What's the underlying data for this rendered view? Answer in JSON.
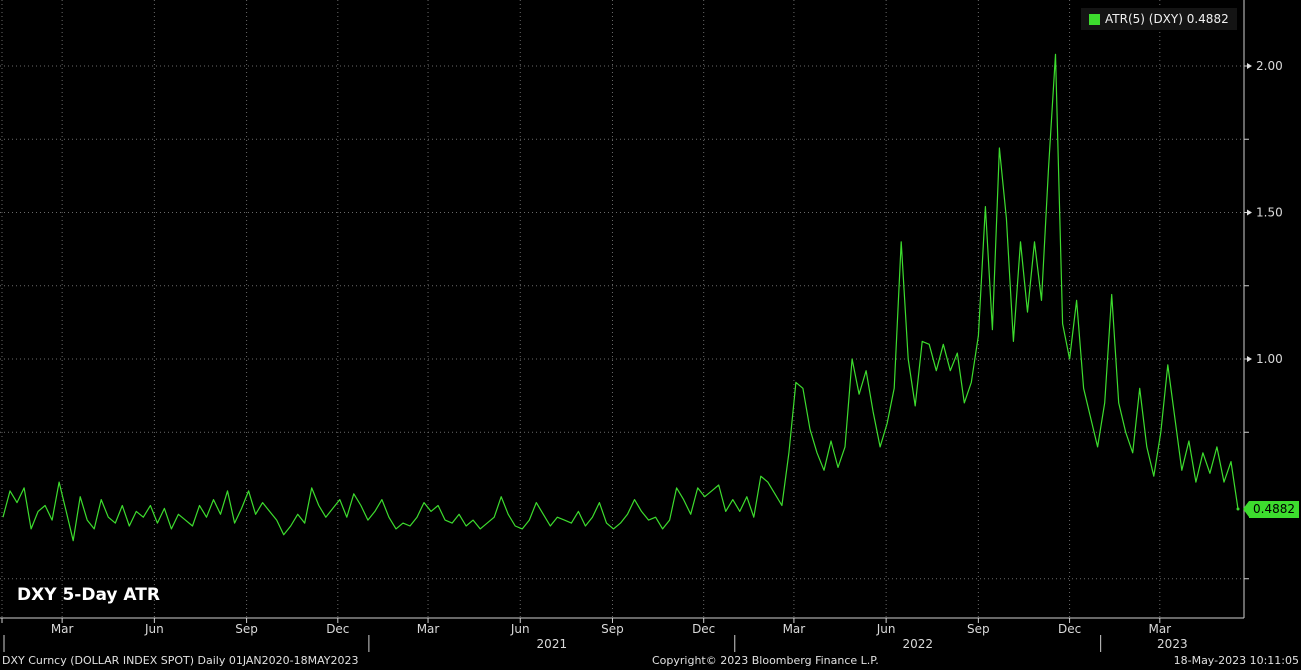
{
  "chart_data": {
    "type": "line",
    "title": "DXY 5-Day ATR",
    "series": [
      {
        "name": "ATR(5) (DXY)",
        "last_value": "0.4882",
        "color": "#3ddc2e",
        "points": [
          [
            "2020-01-02",
            0.46
          ],
          [
            "2020-01-09",
            0.55
          ],
          [
            "2020-01-16",
            0.51
          ],
          [
            "2020-01-23",
            0.56
          ],
          [
            "2020-01-30",
            0.42
          ],
          [
            "2020-02-06",
            0.48
          ],
          [
            "2020-02-13",
            0.5
          ],
          [
            "2020-02-20",
            0.45
          ],
          [
            "2020-02-27",
            0.58
          ],
          [
            "2020-03-05",
            0.48
          ],
          [
            "2020-03-12",
            0.38
          ],
          [
            "2020-03-19",
            0.53
          ],
          [
            "2020-03-26",
            0.45
          ],
          [
            "2020-04-02",
            0.42
          ],
          [
            "2020-04-09",
            0.52
          ],
          [
            "2020-04-16",
            0.46
          ],
          [
            "2020-04-23",
            0.44
          ],
          [
            "2020-04-30",
            0.5
          ],
          [
            "2020-05-07",
            0.43
          ],
          [
            "2020-05-14",
            0.48
          ],
          [
            "2020-05-21",
            0.46
          ],
          [
            "2020-05-28",
            0.5
          ],
          [
            "2020-06-04",
            0.44
          ],
          [
            "2020-06-11",
            0.49
          ],
          [
            "2020-06-18",
            0.42
          ],
          [
            "2020-06-25",
            0.47
          ],
          [
            "2020-07-02",
            0.45
          ],
          [
            "2020-07-09",
            0.43
          ],
          [
            "2020-07-16",
            0.5
          ],
          [
            "2020-07-23",
            0.46
          ],
          [
            "2020-07-30",
            0.52
          ],
          [
            "2020-08-06",
            0.47
          ],
          [
            "2020-08-13",
            0.55
          ],
          [
            "2020-08-20",
            0.44
          ],
          [
            "2020-08-27",
            0.49
          ],
          [
            "2020-09-03",
            0.55
          ],
          [
            "2020-09-10",
            0.47
          ],
          [
            "2020-09-17",
            0.51
          ],
          [
            "2020-09-24",
            0.48
          ],
          [
            "2020-10-01",
            0.45
          ],
          [
            "2020-10-08",
            0.4
          ],
          [
            "2020-10-15",
            0.43
          ],
          [
            "2020-10-22",
            0.47
          ],
          [
            "2020-10-29",
            0.44
          ],
          [
            "2020-11-05",
            0.56
          ],
          [
            "2020-11-12",
            0.5
          ],
          [
            "2020-11-19",
            0.46
          ],
          [
            "2020-11-26",
            0.49
          ],
          [
            "2020-12-03",
            0.52
          ],
          [
            "2020-12-10",
            0.46
          ],
          [
            "2020-12-17",
            0.54
          ],
          [
            "2020-12-24",
            0.5
          ],
          [
            "2020-12-31",
            0.45
          ],
          [
            "2021-01-07",
            0.48
          ],
          [
            "2021-01-14",
            0.52
          ],
          [
            "2021-01-21",
            0.46
          ],
          [
            "2021-01-28",
            0.42
          ],
          [
            "2021-02-04",
            0.44
          ],
          [
            "2021-02-11",
            0.43
          ],
          [
            "2021-02-18",
            0.46
          ],
          [
            "2021-02-25",
            0.51
          ],
          [
            "2021-03-04",
            0.48
          ],
          [
            "2021-03-11",
            0.5
          ],
          [
            "2021-03-18",
            0.45
          ],
          [
            "2021-03-25",
            0.44
          ],
          [
            "2021-04-01",
            0.47
          ],
          [
            "2021-04-08",
            0.43
          ],
          [
            "2021-04-15",
            0.45
          ],
          [
            "2021-04-22",
            0.42
          ],
          [
            "2021-04-29",
            0.44
          ],
          [
            "2021-05-06",
            0.46
          ],
          [
            "2021-05-13",
            0.53
          ],
          [
            "2021-05-20",
            0.47
          ],
          [
            "2021-05-27",
            0.43
          ],
          [
            "2021-06-03",
            0.42
          ],
          [
            "2021-06-10",
            0.45
          ],
          [
            "2021-06-17",
            0.51
          ],
          [
            "2021-06-24",
            0.47
          ],
          [
            "2021-07-01",
            0.43
          ],
          [
            "2021-07-08",
            0.46
          ],
          [
            "2021-07-15",
            0.45
          ],
          [
            "2021-07-22",
            0.44
          ],
          [
            "2021-07-29",
            0.48
          ],
          [
            "2021-08-05",
            0.43
          ],
          [
            "2021-08-12",
            0.46
          ],
          [
            "2021-08-19",
            0.51
          ],
          [
            "2021-08-26",
            0.44
          ],
          [
            "2021-09-02",
            0.42
          ],
          [
            "2021-09-09",
            0.44
          ],
          [
            "2021-09-16",
            0.47
          ],
          [
            "2021-09-23",
            0.52
          ],
          [
            "2021-09-30",
            0.48
          ],
          [
            "2021-10-07",
            0.45
          ],
          [
            "2021-10-14",
            0.46
          ],
          [
            "2021-10-21",
            0.42
          ],
          [
            "2021-10-28",
            0.45
          ],
          [
            "2021-11-04",
            0.56
          ],
          [
            "2021-11-11",
            0.52
          ],
          [
            "2021-11-18",
            0.47
          ],
          [
            "2021-11-25",
            0.56
          ],
          [
            "2021-12-02",
            0.53
          ],
          [
            "2021-12-09",
            0.55
          ],
          [
            "2021-12-16",
            0.57
          ],
          [
            "2021-12-23",
            0.48
          ],
          [
            "2021-12-30",
            0.52
          ],
          [
            "2022-01-06",
            0.48
          ],
          [
            "2022-01-13",
            0.53
          ],
          [
            "2022-01-20",
            0.46
          ],
          [
            "2022-01-27",
            0.6
          ],
          [
            "2022-02-03",
            0.58
          ],
          [
            "2022-02-10",
            0.54
          ],
          [
            "2022-02-17",
            0.5
          ],
          [
            "2022-02-24",
            0.68
          ],
          [
            "2022-03-03",
            0.92
          ],
          [
            "2022-03-10",
            0.9
          ],
          [
            "2022-03-17",
            0.76
          ],
          [
            "2022-03-24",
            0.68
          ],
          [
            "2022-03-31",
            0.62
          ],
          [
            "2022-04-07",
            0.72
          ],
          [
            "2022-04-14",
            0.63
          ],
          [
            "2022-04-21",
            0.7
          ],
          [
            "2022-04-28",
            1.0
          ],
          [
            "2022-05-05",
            0.88
          ],
          [
            "2022-05-12",
            0.96
          ],
          [
            "2022-05-19",
            0.82
          ],
          [
            "2022-05-26",
            0.7
          ],
          [
            "2022-06-02",
            0.78
          ],
          [
            "2022-06-09",
            0.9
          ],
          [
            "2022-06-16",
            1.4
          ],
          [
            "2022-06-23",
            1.0
          ],
          [
            "2022-06-30",
            0.84
          ],
          [
            "2022-07-07",
            1.06
          ],
          [
            "2022-07-14",
            1.05
          ],
          [
            "2022-07-21",
            0.96
          ],
          [
            "2022-07-28",
            1.05
          ],
          [
            "2022-08-04",
            0.96
          ],
          [
            "2022-08-11",
            1.02
          ],
          [
            "2022-08-18",
            0.85
          ],
          [
            "2022-08-25",
            0.92
          ],
          [
            "2022-09-01",
            1.08
          ],
          [
            "2022-09-08",
            1.52
          ],
          [
            "2022-09-15",
            1.1
          ],
          [
            "2022-09-22",
            1.72
          ],
          [
            "2022-09-29",
            1.48
          ],
          [
            "2022-10-06",
            1.06
          ],
          [
            "2022-10-13",
            1.4
          ],
          [
            "2022-10-20",
            1.16
          ],
          [
            "2022-10-27",
            1.4
          ],
          [
            "2022-11-03",
            1.2
          ],
          [
            "2022-11-10",
            1.65
          ],
          [
            "2022-11-17",
            2.04
          ],
          [
            "2022-11-24",
            1.12
          ],
          [
            "2022-12-01",
            1.0
          ],
          [
            "2022-12-08",
            1.2
          ],
          [
            "2022-12-15",
            0.9
          ],
          [
            "2022-12-22",
            0.8
          ],
          [
            "2022-12-29",
            0.7
          ],
          [
            "2023-01-05",
            0.85
          ],
          [
            "2023-01-12",
            1.22
          ],
          [
            "2023-01-19",
            0.85
          ],
          [
            "2023-01-26",
            0.75
          ],
          [
            "2023-02-02",
            0.68
          ],
          [
            "2023-02-09",
            0.9
          ],
          [
            "2023-02-16",
            0.7
          ],
          [
            "2023-02-23",
            0.6
          ],
          [
            "2023-03-02",
            0.75
          ],
          [
            "2023-03-09",
            0.98
          ],
          [
            "2023-03-16",
            0.8
          ],
          [
            "2023-03-23",
            0.62
          ],
          [
            "2023-03-30",
            0.72
          ],
          [
            "2023-04-06",
            0.58
          ],
          [
            "2023-04-13",
            0.68
          ],
          [
            "2023-04-20",
            0.61
          ],
          [
            "2023-04-27",
            0.7
          ],
          [
            "2023-05-04",
            0.58
          ],
          [
            "2023-05-11",
            0.65
          ],
          [
            "2023-05-18",
            0.4882
          ]
        ]
      }
    ],
    "x_range": [
      "2020-01-01",
      "2023-05-24"
    ],
    "y_range": [
      0.08,
      2.18
    ],
    "y_ticks": [
      {
        "value": 2.0,
        "label": "2.00"
      },
      {
        "value": 1.5,
        "label": "1.50"
      },
      {
        "value": 1.0,
        "label": "1.00"
      }
    ],
    "y_minor_ticks": [
      0.25,
      0.75,
      1.25,
      1.75
    ],
    "x_month_ticks": [
      {
        "date": "2020-01-01",
        "label": ""
      },
      {
        "date": "2020-03-01",
        "label": "Mar"
      },
      {
        "date": "2020-06-01",
        "label": "Jun"
      },
      {
        "date": "2020-09-01",
        "label": "Sep"
      },
      {
        "date": "2020-12-01",
        "label": "Dec"
      },
      {
        "date": "2021-03-01",
        "label": "Mar"
      },
      {
        "date": "2021-06-01",
        "label": "Jun"
      },
      {
        "date": "2021-09-01",
        "label": "Sep"
      },
      {
        "date": "2021-12-01",
        "label": "Dec"
      },
      {
        "date": "2022-03-01",
        "label": "Mar"
      },
      {
        "date": "2022-06-01",
        "label": "Jun"
      },
      {
        "date": "2022-09-01",
        "label": "Sep"
      },
      {
        "date": "2022-12-01",
        "label": "Dec"
      },
      {
        "date": "2023-03-01",
        "label": "Mar"
      }
    ],
    "x_year_labels": [
      {
        "label": "2021",
        "start": "2021-01-01",
        "end": "2022-01-01"
      },
      {
        "label": "2022",
        "start": "2022-01-01",
        "end": "2023-01-01"
      },
      {
        "label": "2023",
        "start": "2023-01-01",
        "end": "2023-05-24"
      }
    ],
    "grid": true,
    "legend_position": "top-right",
    "colors": {
      "background": "#000000",
      "line": "#3ddc2e",
      "grid": "#6a6a6a",
      "text": "#d9d9d9"
    }
  },
  "legend": {
    "label": "ATR(5) (DXY) 0.4882"
  },
  "last_value_tag": "0.4882",
  "footer": {
    "left": "DXY Curncy (DOLLAR INDEX SPOT)  Daily 01JAN2020-18MAY2023",
    "center": "Copyright© 2023 Bloomberg Finance L.P.",
    "right": "18-May-2023 10:11:05"
  }
}
